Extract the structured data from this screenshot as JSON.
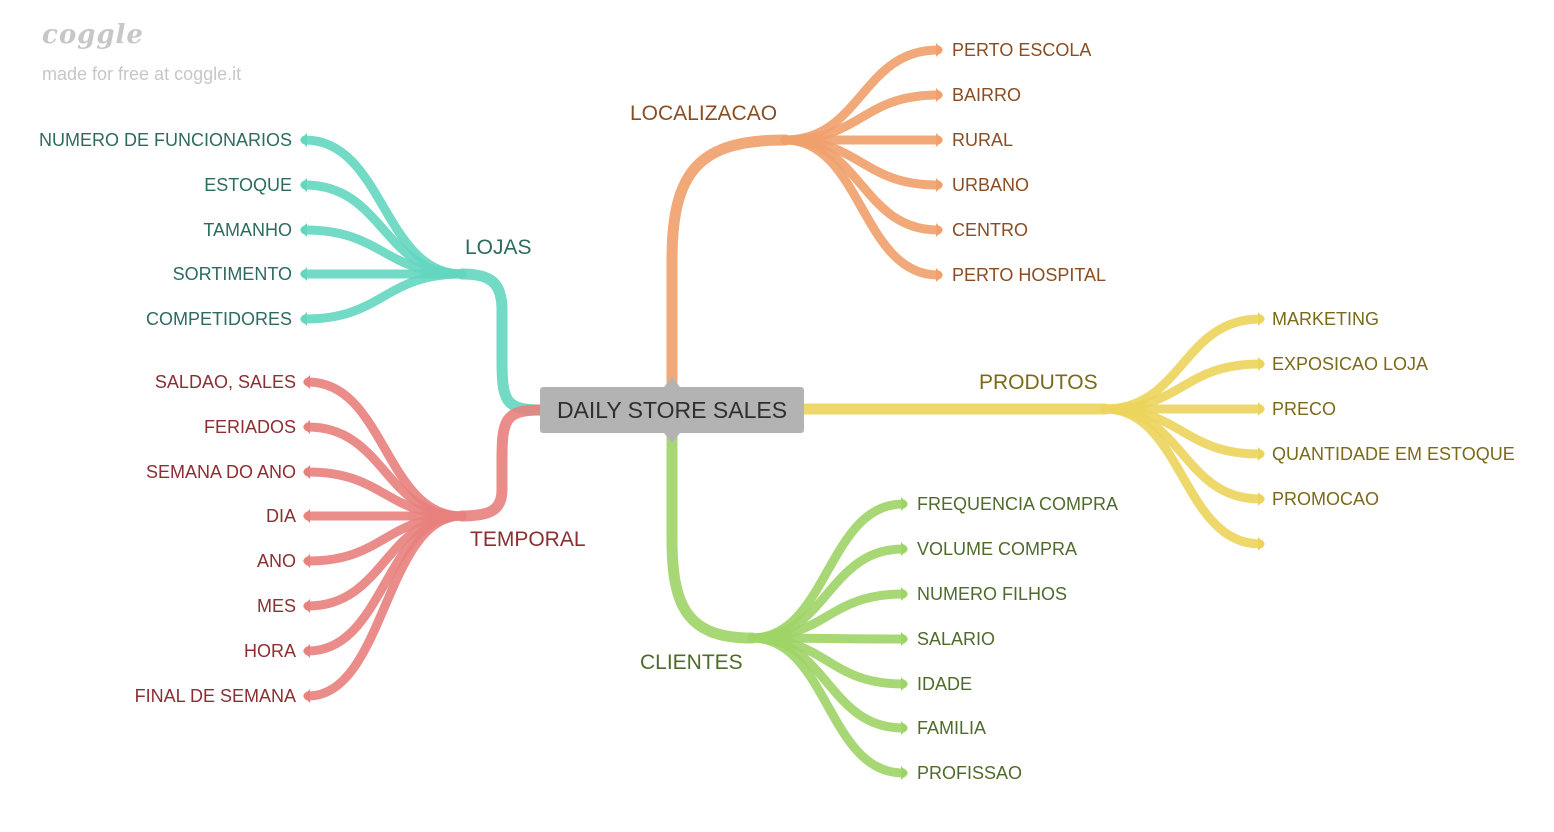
{
  "brand": {
    "name": "coggle",
    "tagline": "made for free at coggle.it"
  },
  "root": {
    "label": "DAILY STORE SALES"
  },
  "branches": [
    {
      "id": "lojas",
      "label": "LOJAS",
      "stroke": "#63d6bf",
      "text": "#2c6b5e",
      "children": [
        "NUMERO DE FUNCIONARIOS",
        "ESTOQUE",
        "TAMANHO",
        "SORTIMENTO",
        "COMPETIDORES"
      ]
    },
    {
      "id": "temporal",
      "label": "TEMPORAL",
      "stroke": "#e8817d",
      "text": "#8a2f32",
      "children": [
        "SALDAO, SALES",
        "FERIADOS",
        "SEMANA DO ANO",
        "DIA",
        "ANO",
        "MES",
        "HORA",
        "FINAL DE SEMANA"
      ]
    },
    {
      "id": "localizacao",
      "label": "LOCALIZACAO",
      "stroke": "#f0a06c",
      "text": "#8a4d22",
      "children": [
        "PERTO ESCOLA",
        "BAIRRO",
        "RURAL",
        "URBANO",
        "CENTRO",
        "PERTO HOSPITAL"
      ]
    },
    {
      "id": "produtos",
      "label": "PRODUTOS",
      "stroke": "#ecd45c",
      "text": "#7a6a1a",
      "children": [
        "MARKETING",
        "EXPOSICAO LOJA",
        "PRECO",
        "QUANTIDADE EM ESTOQUE",
        "PROMOCAO",
        ""
      ]
    },
    {
      "id": "clientes",
      "label": "CLIENTES",
      "stroke": "#9ed466",
      "text": "#4f6b2b",
      "children": [
        "FREQUENCIA COMPRA",
        "VOLUME COMPRA",
        "NUMERO FILHOS",
        "SALARIO",
        "IDADE",
        "FAMILIA",
        "PROFISSAO"
      ]
    }
  ]
}
